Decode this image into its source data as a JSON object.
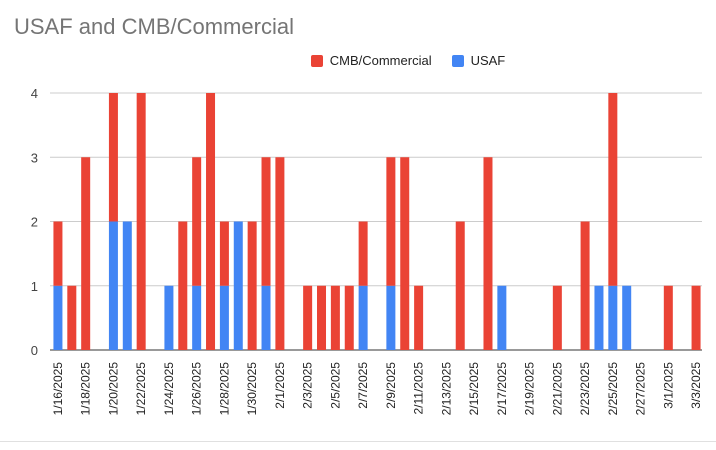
{
  "chart_data": {
    "type": "bar",
    "stacked": true,
    "title": "USAF and CMB/Commercial",
    "xlabel": "",
    "ylabel": "",
    "ylim": [
      0,
      4
    ],
    "yticks": [
      0,
      1,
      2,
      3,
      4
    ],
    "grid": true,
    "legend_position": "top",
    "categories": [
      "1/16/2025",
      "1/17/2025",
      "1/18/2025",
      "1/19/2025",
      "1/20/2025",
      "1/21/2025",
      "1/22/2025",
      "1/23/2025",
      "1/24/2025",
      "1/25/2025",
      "1/26/2025",
      "1/27/2025",
      "1/28/2025",
      "1/29/2025",
      "1/30/2025",
      "1/31/2025",
      "2/1/2025",
      "2/2/2025",
      "2/3/2025",
      "2/4/2025",
      "2/5/2025",
      "2/6/2025",
      "2/7/2025",
      "2/8/2025",
      "2/9/2025",
      "2/10/2025",
      "2/11/2025",
      "2/12/2025",
      "2/13/2025",
      "2/14/2025",
      "2/15/2025",
      "2/16/2025",
      "2/17/2025",
      "2/18/2025",
      "2/19/2025",
      "2/20/2025",
      "2/21/2025",
      "2/22/2025",
      "2/23/2025",
      "2/24/2025",
      "2/25/2025",
      "2/26/2025",
      "2/27/2025",
      "2/28/2025",
      "3/1/2025",
      "3/2/2025",
      "3/3/2025"
    ],
    "tick_labels": [
      "1/16/2025",
      "1/18/2025",
      "1/20/2025",
      "1/22/2025",
      "1/24/2025",
      "1/26/2025",
      "1/28/2025",
      "1/30/2025",
      "2/1/2025",
      "2/3/2025",
      "2/5/2025",
      "2/7/2025",
      "2/9/2025",
      "2/11/2025",
      "2/13/2025",
      "2/15/2025",
      "2/17/2025",
      "2/19/2025",
      "2/21/2025",
      "2/23/2025",
      "2/25/2025",
      "2/27/2025",
      "3/1/2025",
      "3/3/2025"
    ],
    "series": [
      {
        "name": "USAF",
        "color": "#4285f4",
        "values": [
          1,
          0,
          0,
          0,
          2,
          2,
          0,
          0,
          1,
          0,
          1,
          0,
          1,
          2,
          0,
          1,
          0,
          0,
          0,
          0,
          0,
          0,
          1,
          0,
          1,
          0,
          0,
          0,
          0,
          0,
          0,
          0,
          1,
          0,
          0,
          0,
          0,
          0,
          0,
          1,
          1,
          1,
          0,
          0,
          0,
          0,
          0
        ]
      },
      {
        "name": "CMB/Commercial",
        "color": "#ea4335",
        "values": [
          1,
          1,
          3,
          0,
          2,
          0,
          4,
          0,
          0,
          2,
          2,
          4,
          1,
          0,
          2,
          2,
          3,
          0,
          1,
          1,
          1,
          1,
          1,
          0,
          2,
          3,
          1,
          0,
          0,
          2,
          0,
          3,
          0,
          0,
          0,
          0,
          1,
          0,
          2,
          0,
          3,
          0,
          0,
          0,
          1,
          0,
          1
        ]
      }
    ]
  }
}
